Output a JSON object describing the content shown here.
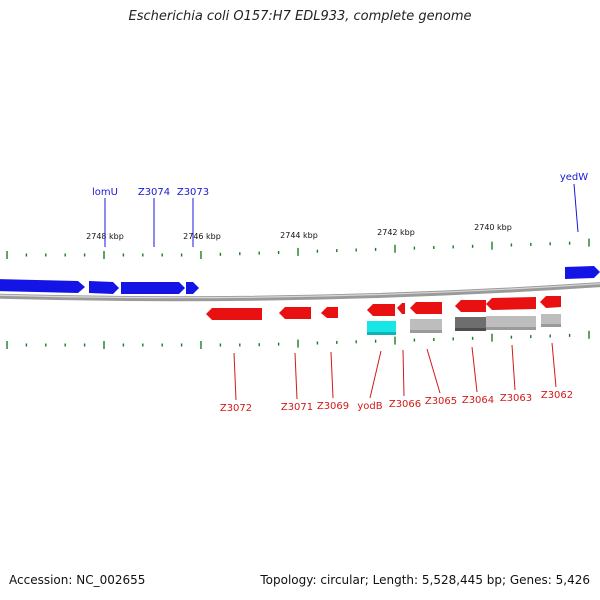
{
  "title": "Escherichia coli O157:H7 EDL933, complete genome",
  "footer": {
    "accession": "Accession: NC_002655",
    "info": "Topology: circular; Length: 5,528,445 bp; Genes: 5,426"
  },
  "colors": {
    "forward": "#1414e6",
    "reverse": "#e81010",
    "backbone": "#8c8c8c",
    "tick": "#1f7a1f",
    "cyan_feature": "#18e6e6",
    "dark_gray_feature": "#6e6e6e",
    "light_gray_feature": "#bdbdbd"
  },
  "kbp_ticks": [
    "2748 kbp",
    "2746 kbp",
    "2744 kbp",
    "2742 kbp",
    "2740 kbp"
  ],
  "forward_genes": {
    "labels": [
      "lomU",
      "Z3074",
      "Z3073",
      "yedW"
    ]
  },
  "reverse_genes": {
    "labels": [
      "Z3072",
      "Z3071",
      "Z3069",
      "yodB",
      "Z3066",
      "Z3065",
      "Z3064",
      "Z3063",
      "Z3062"
    ]
  }
}
